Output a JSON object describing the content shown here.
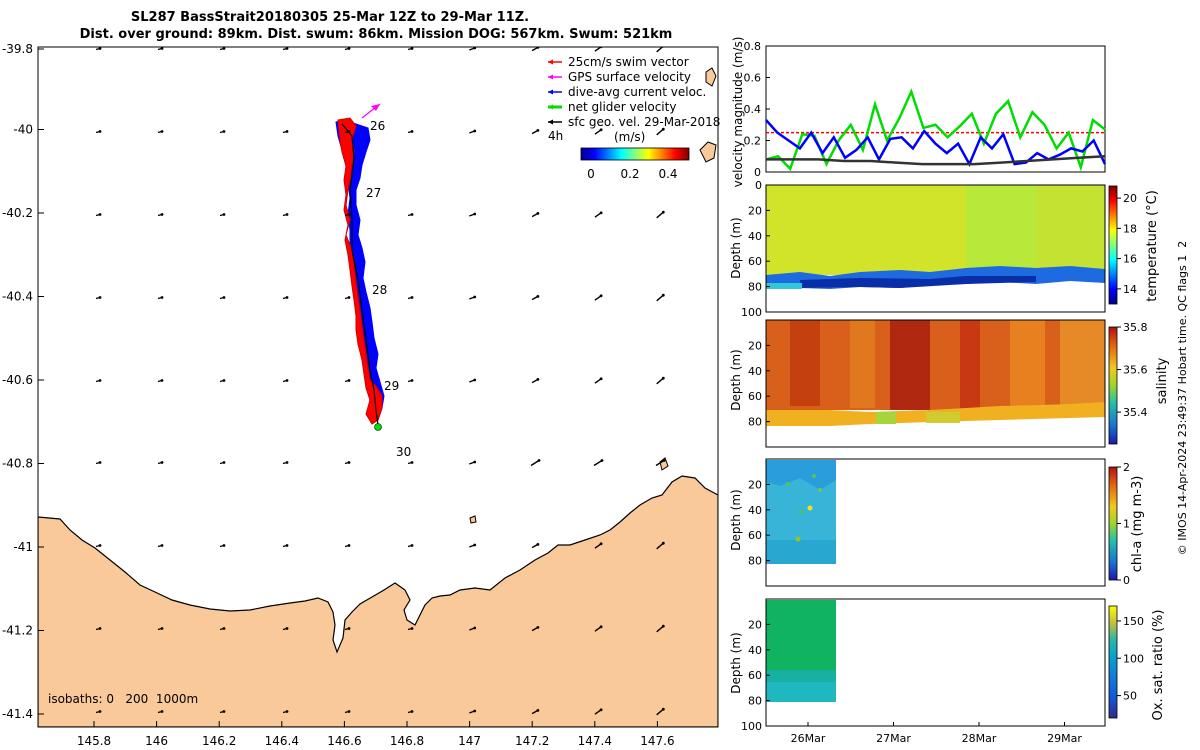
{
  "title": {
    "line1": "SL287 BassStrait20180305 25-Mar 12Z to 29-Mar 11Z.",
    "line2": "Dist. over ground: 89km. Dist. swum: 86km. Mission DOG: 567km. Swum: 521km"
  },
  "map": {
    "lon_ticks": [
      "145.8",
      "146",
      "146.2",
      "146.4",
      "146.6",
      "146.8",
      "147",
      "147.2",
      "147.4",
      "147.6"
    ],
    "lat_ticks": [
      "-39.8",
      "-40",
      "-40.2",
      "-40.4",
      "-40.6",
      "-40.8",
      "-41",
      "-41.2",
      "-41.4"
    ],
    "day_labels": [
      "26",
      "27",
      "28",
      "29",
      "30"
    ],
    "legend": [
      {
        "label": "25cm/s swim vector",
        "color": "#ff0000"
      },
      {
        "label": "GPS surface velocity",
        "color": "#ff00ff"
      },
      {
        "label": "dive-avg current veloc.",
        "color": "#0000ff"
      },
      {
        "label": "net glider velocity",
        "color": "#00dd00"
      },
      {
        "label": "sfc geo. vel. 29-Mar-2018",
        "color": "#000000"
      }
    ],
    "legend_extra": "4h",
    "colorbar_unit": "(m/s)",
    "colorbar_ticks": [
      "0",
      "0.2",
      "0.4"
    ],
    "isobaths": "isobaths: 0   200  1000m",
    "land_color": "#f9c99a"
  },
  "chart_data": [
    {
      "type": "line",
      "ylabel": "velocity magnitude (m/s)",
      "ylim": [
        0,
        0.8
      ],
      "y_ticks": [
        "0",
        "0.2",
        "0.4",
        "0.6",
        "0.8"
      ],
      "series": [
        {
          "name": "swim vector",
          "color": "#ff0000",
          "values": [
            0.25,
            0.25,
            0.25,
            0.25,
            0.25,
            0.25,
            0.25,
            0.25,
            0.25,
            0.25
          ]
        },
        {
          "name": "net glider velocity",
          "color": "#00dd00",
          "values": [
            0.08,
            0.1,
            0.02,
            0.24,
            0.23,
            0.05,
            0.2,
            0.3,
            0.14,
            0.43,
            0.2,
            0.34,
            0.51,
            0.28,
            0.3,
            0.22,
            0.29,
            0.37,
            0.18,
            0.37,
            0.45,
            0.22,
            0.38,
            0.3,
            0.15,
            0.25,
            0.03,
            0.33,
            0.27
          ]
        },
        {
          "name": "dive-avg current",
          "color": "#0000ff",
          "values": [
            0.33,
            0.25,
            0.2,
            0.15,
            0.25,
            0.12,
            0.22,
            0.09,
            0.14,
            0.22,
            0.08,
            0.21,
            0.22,
            0.15,
            0.26,
            0.18,
            0.12,
            0.18,
            0.05,
            0.22,
            0.15,
            0.24,
            0.05,
            0.06,
            0.12,
            0.08,
            0.11,
            0.15,
            0.13,
            0.2,
            0.05
          ]
        },
        {
          "name": "sfc geo vel",
          "color": "#333333",
          "values": [
            0.08,
            0.08,
            0.08,
            0.07,
            0.07,
            0.06,
            0.05,
            0.05,
            0.05,
            0.06,
            0.07,
            0.08,
            0.09,
            0.1
          ]
        }
      ]
    },
    {
      "type": "heatmap",
      "ylabel": "Depth (m)",
      "clabel": "temperature (°C)",
      "depth_ticks": [
        "0",
        "20",
        "40",
        "60",
        "80",
        "100"
      ],
      "c_ticks": [
        "20",
        "18",
        "16",
        "14"
      ],
      "clim": [
        13,
        20.8
      ]
    },
    {
      "type": "heatmap",
      "ylabel": "Depth (m)",
      "clabel": "salinity",
      "depth_ticks": [
        "20",
        "40",
        "60",
        "80"
      ],
      "c_ticks": [
        "35.8",
        "35.6",
        "35.4"
      ],
      "clim": [
        35.25,
        35.8
      ]
    },
    {
      "type": "heatmap",
      "ylabel": "Depth (m)",
      "clabel": "chl-a (mg m-3)",
      "depth_ticks": [
        "20",
        "40",
        "60",
        "80"
      ],
      "c_ticks": [
        "2",
        "1",
        "0"
      ],
      "clim": [
        0,
        2
      ]
    },
    {
      "type": "heatmap",
      "ylabel": "Depth (m)",
      "clabel": "Ox. sat. ratio (%)",
      "depth_ticks": [
        "20",
        "40",
        "60",
        "80",
        "100"
      ],
      "c_ticks": [
        "150",
        "100",
        "50"
      ],
      "clim": [
        20,
        170
      ]
    }
  ],
  "time_ticks": [
    "26Mar",
    "27Mar",
    "28Mar",
    "29Mar"
  ],
  "footer": "© IMOS 14-Apr-2024 23:49:37 Hobart time. QC flags 1  2"
}
